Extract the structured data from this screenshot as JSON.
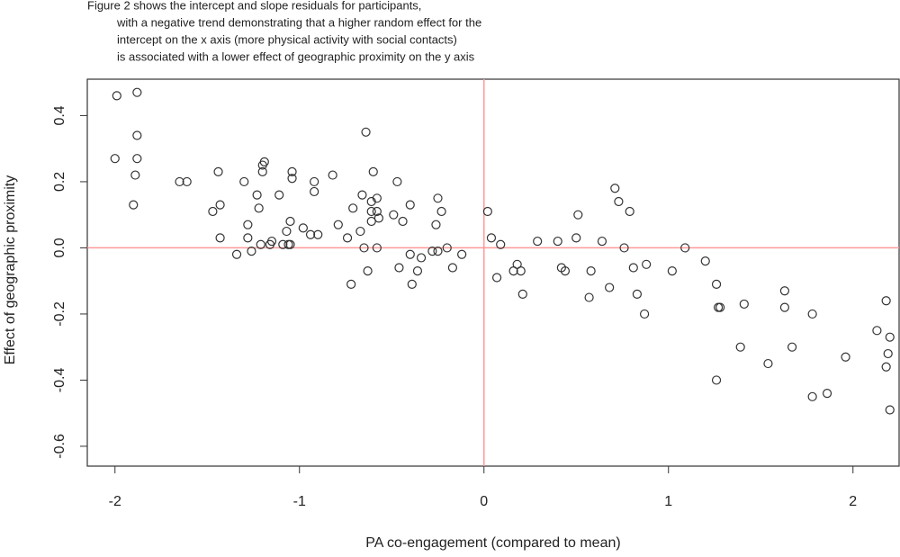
{
  "chart_data": {
    "type": "scatter",
    "title": [
      "Figure 2 shows the intercept and slope residuals for participants,",
      "with a negative trend demonstrating that a higher random effect for the",
      "intercept on the x axis (more physical activity with social contacts)",
      "is associated with a lower effect of geographic proximity on the y axis"
    ],
    "x_label": "PA co-engagement (compared to mean)",
    "y_label": "Effect of geographic proximity",
    "xlim": [
      -2.15,
      2.25
    ],
    "ylim": [
      -0.66,
      0.51
    ],
    "xticks": [
      -2,
      -1,
      0,
      1,
      2
    ],
    "yticks": [
      -0.6,
      -0.4,
      -0.2,
      {
        "value": 0,
        "label": "0.0"
      },
      0.2,
      0.4
    ],
    "hlines": [
      0
    ],
    "vlines": [
      0
    ],
    "line_color": "#ff9999",
    "color": "#333333",
    "x": [
      -2.0,
      -1.99,
      -1.88,
      -1.88,
      -1.88,
      -1.89,
      -1.9,
      -1.65,
      -1.61,
      -1.47,
      -1.44,
      -1.43,
      -1.43,
      -1.34,
      -1.3,
      -1.28,
      -1.28,
      -1.26,
      -1.23,
      -1.22,
      -1.2,
      -1.2,
      -1.19,
      -1.21,
      -1.16,
      -1.15,
      -1.11,
      -1.09,
      -1.07,
      -1.06,
      -1.05,
      -1.05,
      -1.04,
      -1.04,
      -0.98,
      -0.94,
      -0.92,
      -0.92,
      -0.9,
      -0.82,
      -0.79,
      -0.74,
      -0.72,
      -0.71,
      -0.67,
      -0.66,
      -0.65,
      -0.64,
      -0.63,
      -0.61,
      -0.61,
      -0.61,
      -0.6,
      -0.58,
      -0.58,
      -0.58,
      -0.57,
      -0.49,
      -0.47,
      -0.46,
      -0.44,
      -0.4,
      -0.4,
      -0.39,
      -0.36,
      -0.34,
      -0.28,
      -0.25,
      -0.25,
      -0.26,
      -0.23,
      -0.2,
      -0.17,
      -0.12,
      0.02,
      0.04,
      0.07,
      0.09,
      0.16,
      0.18,
      0.2,
      0.21,
      0.29,
      0.4,
      0.42,
      0.44,
      0.5,
      0.51,
      0.57,
      0.58,
      0.64,
      0.68,
      0.71,
      0.73,
      0.76,
      0.79,
      0.81,
      0.83,
      0.87,
      0.88,
      1.02,
      1.09,
      1.2,
      1.26,
      1.26,
      1.27,
      1.28,
      1.39,
      1.41,
      1.54,
      1.63,
      1.63,
      1.67,
      1.78,
      1.78,
      1.86,
      1.96,
      2.13,
      2.18,
      2.19,
      2.18,
      2.2,
      2.2
    ],
    "values": [
      0.27,
      0.46,
      0.47,
      0.34,
      0.27,
      0.22,
      0.13,
      0.2,
      0.2,
      0.11,
      0.23,
      0.13,
      0.03,
      -0.02,
      0.2,
      0.07,
      0.03,
      -0.01,
      0.16,
      0.12,
      0.23,
      0.25,
      0.26,
      0.01,
      0.01,
      0.02,
      0.16,
      0.01,
      0.05,
      0.01,
      0.08,
      0.01,
      0.23,
      0.21,
      0.06,
      0.04,
      0.2,
      0.17,
      0.04,
      0.22,
      0.07,
      0.03,
      -0.11,
      0.12,
      0.05,
      0.16,
      0.0,
      0.35,
      -0.07,
      0.11,
      0.08,
      0.14,
      0.23,
      0.15,
      0.11,
      0.0,
      0.09,
      0.1,
      0.2,
      -0.06,
      0.08,
      0.13,
      -0.02,
      -0.11,
      -0.07,
      -0.03,
      -0.01,
      0.15,
      -0.01,
      0.07,
      0.11,
      0.0,
      -0.06,
      -0.02,
      0.11,
      0.03,
      -0.09,
      0.01,
      -0.07,
      -0.05,
      -0.07,
      -0.14,
      0.02,
      0.02,
      -0.06,
      -0.07,
      0.03,
      0.1,
      -0.15,
      -0.07,
      0.02,
      -0.12,
      0.18,
      0.14,
      0.0,
      0.11,
      -0.06,
      -0.14,
      -0.2,
      -0.05,
      -0.07,
      0.0,
      -0.04,
      -0.11,
      -0.4,
      -0.18,
      -0.18,
      -0.3,
      -0.17,
      -0.35,
      -0.13,
      -0.18,
      -0.3,
      -0.2,
      -0.45,
      -0.44,
      -0.33,
      -0.25,
      -0.16,
      -0.32,
      -0.36,
      -0.49,
      -0.27
    ]
  }
}
